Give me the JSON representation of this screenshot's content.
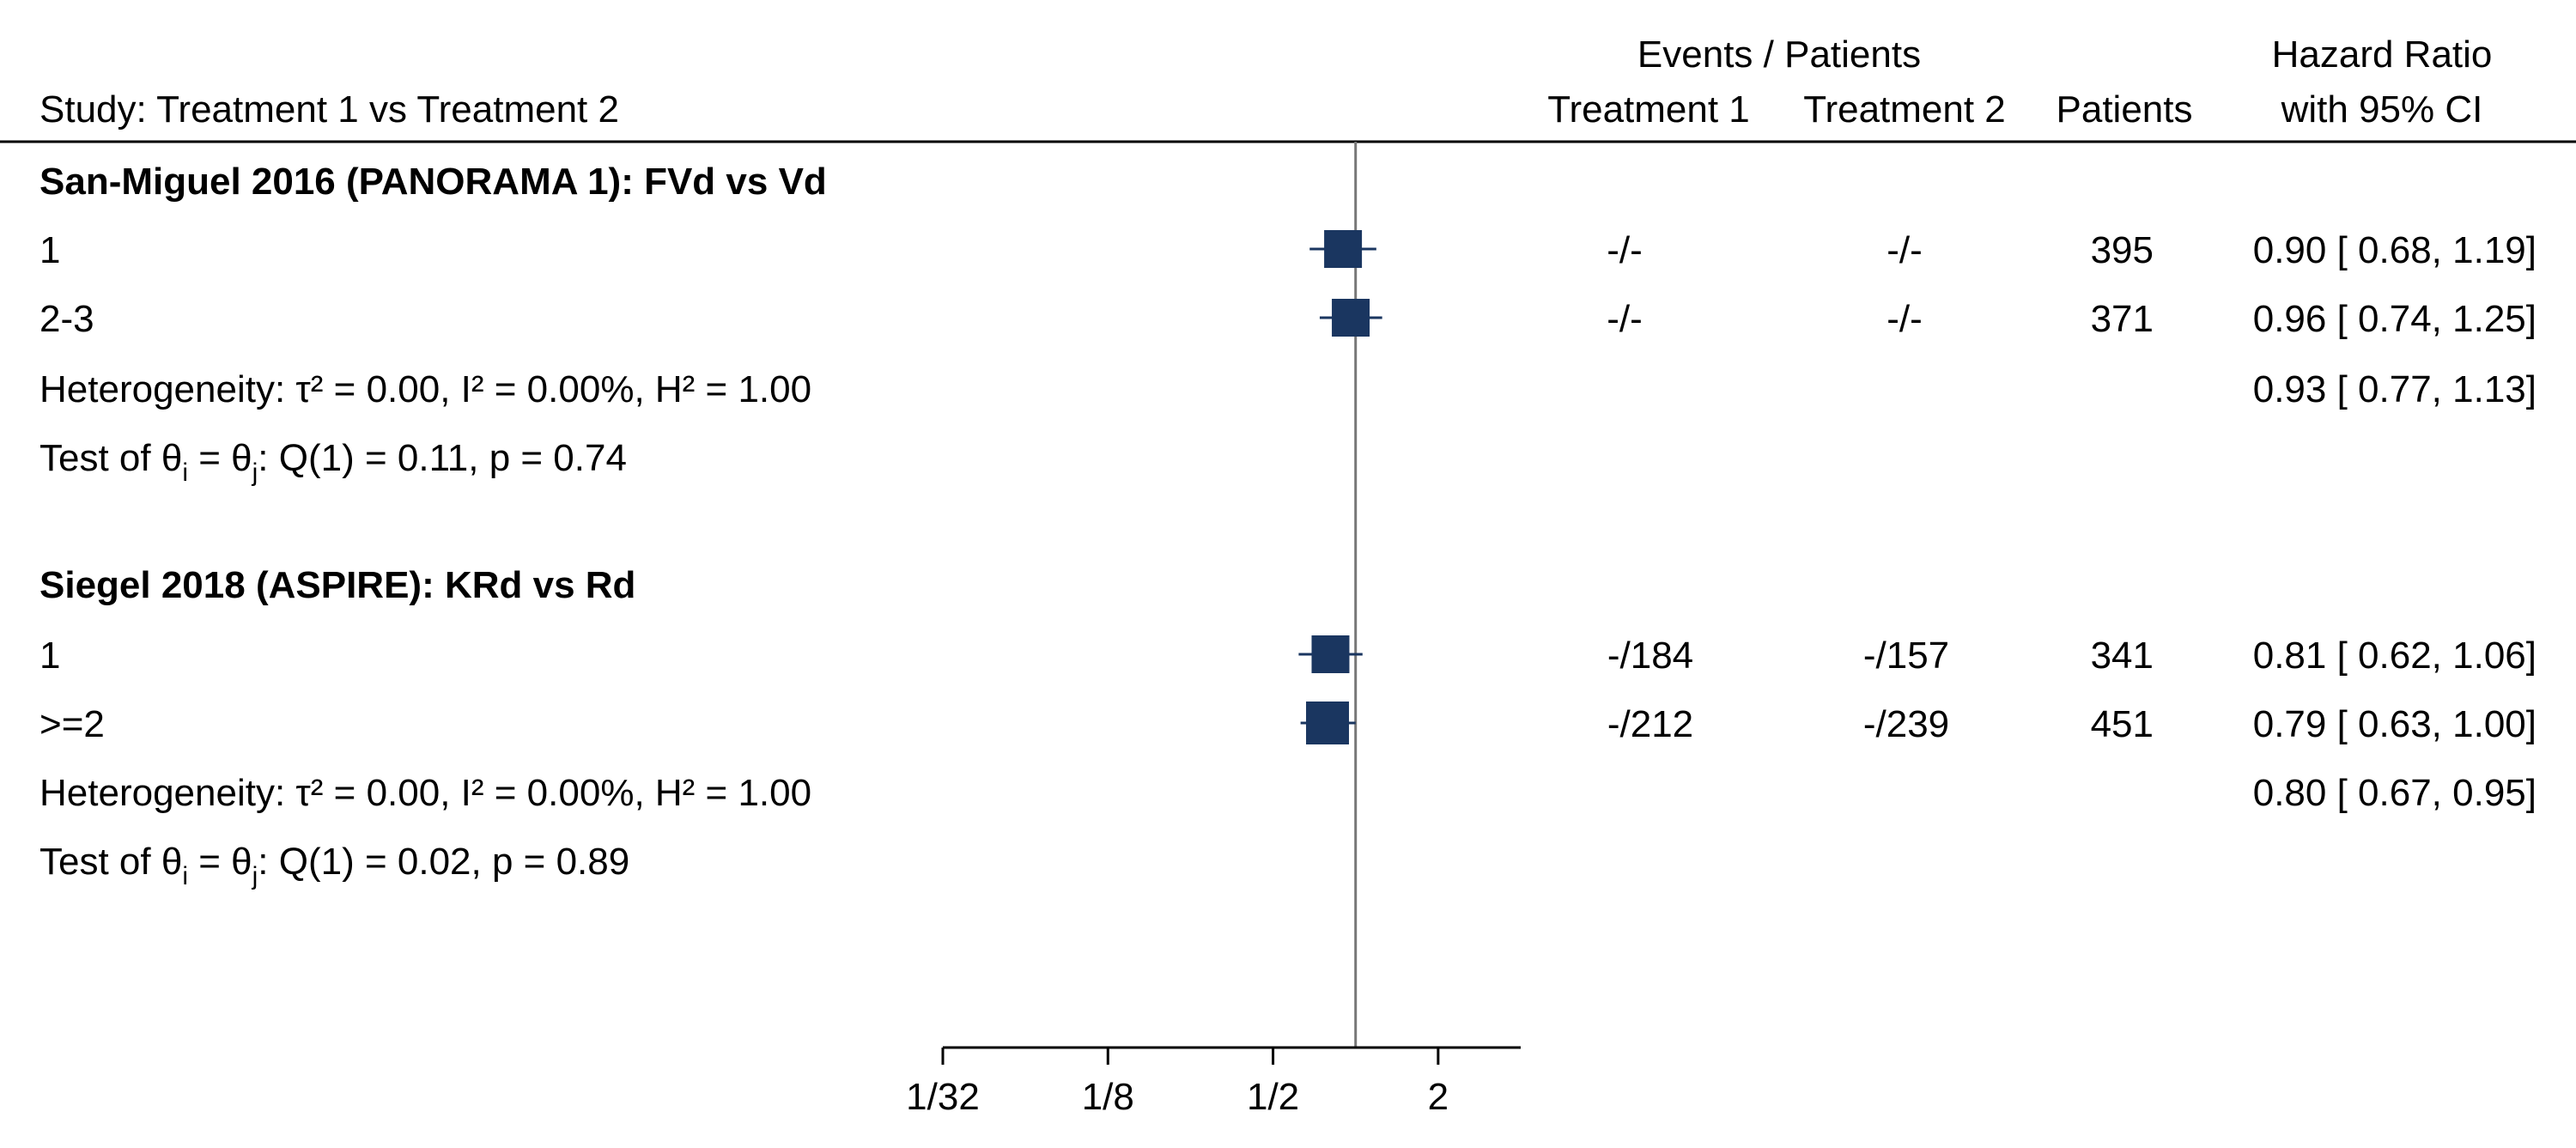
{
  "header": {
    "study_label": "Study: Treatment 1 vs Treatment 2",
    "events_title": "Events / Patients",
    "treatment1": "Treatment 1",
    "treatment2": "Treatment 2",
    "patients": "Patients",
    "effect_title": "Hazard Ratio",
    "effect_subtitle": "with 95% CI"
  },
  "colors": {
    "marker": "#1a3660",
    "reference_line": "#777777"
  },
  "chart_data": {
    "type": "forest",
    "scale": "log2",
    "axis_ticks": [
      "1/32",
      "1/8",
      "1/2",
      "2"
    ],
    "axis_tick_values": [
      0.03125,
      0.125,
      0.5,
      2
    ],
    "xlim": [
      0.03125,
      4
    ],
    "reference_value": 1,
    "groups": [
      {
        "title": "San-Miguel 2016 (PANORAMA 1): FVd vs Vd",
        "studies": [
          {
            "label": "1",
            "events1": "-/-",
            "events2": "-/-",
            "patients": "395",
            "hr": 0.9,
            "lower": 0.68,
            "upper": 1.19,
            "hr_text": "0.90 [ 0.68,  1.19]"
          },
          {
            "label": "2-3",
            "events1": "-/-",
            "events2": "-/-",
            "patients": "371",
            "hr": 0.96,
            "lower": 0.74,
            "upper": 1.25,
            "hr_text": "0.96 [ 0.74,  1.25]"
          }
        ],
        "heterogeneity_text": "Heterogeneity: τ² = 0.00, I² = 0.00%, H² = 1.00",
        "pooled_text": "0.93 [ 0.77,  1.13]",
        "test": {
          "prefix": "Test of θ",
          "sub_i": "i",
          "eq": " = θ",
          "sub_j": "j",
          "suffix": ": Q(1) = 0.11, p = 0.74"
        }
      },
      {
        "title": "Siegel 2018 (ASPIRE): KRd vs Rd",
        "studies": [
          {
            "label": "1",
            "events1": "-/184",
            "events2": "-/157",
            "patients": "341",
            "hr": 0.81,
            "lower": 0.62,
            "upper": 1.06,
            "hr_text": "0.81 [ 0.62,  1.06]"
          },
          {
            "label": ">=2",
            "events1": "-/212",
            "events2": "-/239",
            "patients": "451",
            "hr": 0.79,
            "lower": 0.63,
            "upper": 1.0,
            "hr_text": "0.79 [ 0.63,  1.00]"
          }
        ],
        "heterogeneity_text": "Heterogeneity: τ² = 0.00, I² = 0.00%, H² = 1.00",
        "pooled_text": "0.80 [ 0.67,  0.95]",
        "test": {
          "prefix": "Test of θ",
          "sub_i": "i",
          "eq": " = θ",
          "sub_j": "j",
          "suffix": ": Q(1) = 0.02, p = 0.89"
        }
      }
    ]
  }
}
